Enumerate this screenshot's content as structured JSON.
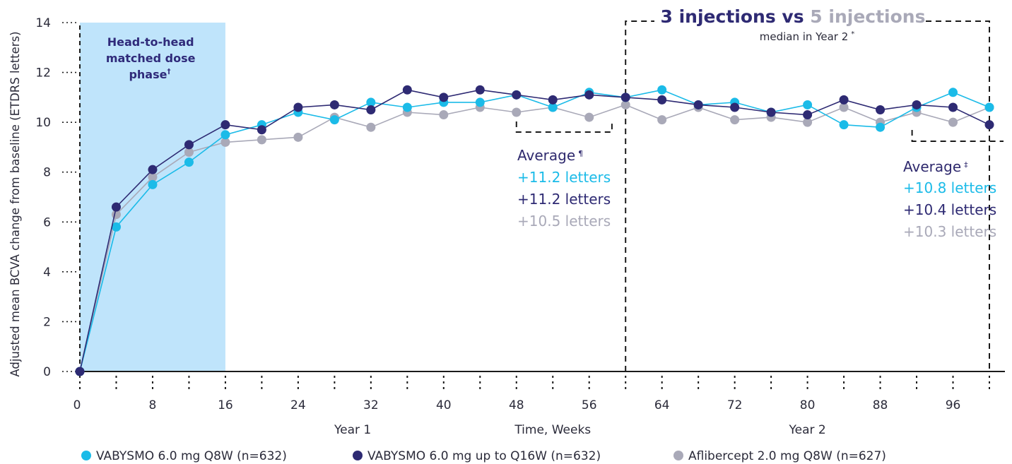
{
  "colors": {
    "faricimab_q8w": "#1bbbe8",
    "faricimab_q16w": "#2e2a73",
    "aflibercept": "#a9a9b8",
    "phase_band": "#bfe4fb",
    "axis": "#1a1a1a"
  },
  "phase_label": [
    "Head-to-head",
    "matched dose",
    "phase",
    "†"
  ],
  "year_labels": {
    "year1": "Year 1",
    "year2": "Year 2"
  },
  "title": {
    "count_a": "3 injections",
    "vs": " vs ",
    "count_b": "5 injections",
    "sub": "median in Year 2",
    "sub_mark": "*"
  },
  "average_year1": {
    "label": "Average",
    "mark": "¶",
    "values": [
      "+11.2 letters",
      "+11.2 letters",
      "+10.5 letters"
    ]
  },
  "average_year2": {
    "label": "Average",
    "mark": "‡",
    "values": [
      "+10.8 letters",
      "+10.4 letters",
      "+10.3 letters"
    ]
  },
  "chart_data": {
    "type": "line",
    "xlabel": "Time, Weeks",
    "ylabel": "Adjusted mean BCVA change from baseline (ETDRS letters)",
    "xlim": [
      0,
      100
    ],
    "ylim": [
      0,
      14
    ],
    "x_ticks": [
      0,
      8,
      16,
      24,
      32,
      40,
      48,
      56,
      64,
      72,
      80,
      88,
      96
    ],
    "y_ticks": [
      0,
      2,
      4,
      6,
      8,
      10,
      12,
      14
    ],
    "grid": false,
    "legend_position": "bottom",
    "shaded_region_x": [
      0,
      16
    ],
    "x": [
      0,
      4,
      8,
      12,
      16,
      20,
      24,
      28,
      32,
      36,
      40,
      44,
      48,
      52,
      56,
      60,
      64,
      68,
      72,
      76,
      80,
      84,
      88,
      92,
      96,
      100
    ],
    "series": [
      {
        "name": "VABYSMO 6.0 mg Q8W (n=632)",
        "color": "#1bbbe8",
        "values": [
          0,
          5.8,
          7.5,
          8.4,
          9.5,
          9.9,
          10.4,
          10.1,
          10.8,
          10.6,
          10.8,
          10.8,
          11.1,
          10.6,
          11.2,
          11.0,
          11.3,
          10.7,
          10.8,
          10.4,
          10.7,
          9.9,
          9.8,
          10.6,
          11.2,
          10.6
        ]
      },
      {
        "name": "VABYSMO 6.0 mg up to Q16W (n=632)",
        "color": "#2e2a73",
        "values": [
          0,
          6.6,
          8.1,
          9.1,
          9.9,
          9.7,
          10.6,
          10.7,
          10.5,
          11.3,
          11.0,
          11.3,
          11.1,
          10.9,
          11.1,
          11.0,
          10.9,
          10.7,
          10.6,
          10.4,
          10.3,
          10.9,
          10.5,
          10.7,
          10.6,
          9.9
        ]
      },
      {
        "name": "Aflibercept 2.0 mg Q8W (n=627)",
        "color": "#a9a9b8",
        "values": [
          0,
          6.3,
          7.8,
          8.8,
          9.2,
          9.3,
          9.4,
          10.2,
          9.8,
          10.4,
          10.3,
          10.6,
          10.4,
          10.6,
          10.2,
          10.7,
          10.1,
          10.6,
          10.1,
          10.2,
          10.0,
          10.6,
          10.0,
          10.4,
          10.0,
          10.6
        ]
      }
    ]
  }
}
